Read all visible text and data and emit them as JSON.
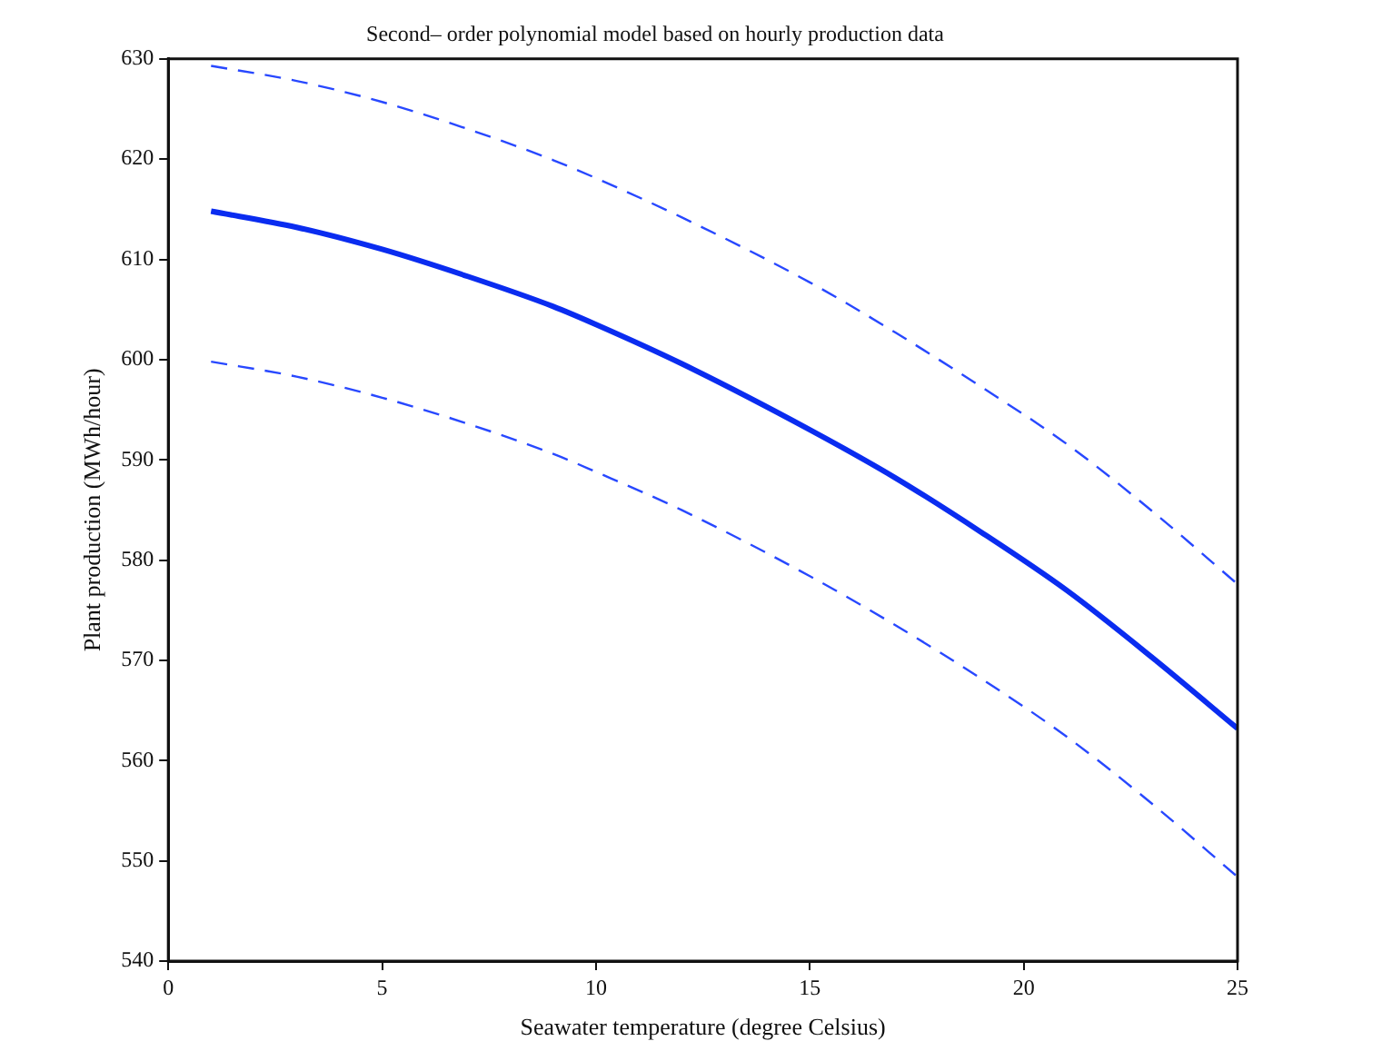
{
  "chart_data": {
    "type": "line",
    "title": "Second– order polynomial model based on hourly production data",
    "xlabel": "Seawater temperature (degree Celsius)",
    "ylabel": "Plant production (MWh/hour)",
    "x": [
      1,
      3,
      5,
      7,
      9,
      10,
      12,
      15,
      17,
      19,
      21,
      23,
      25
    ],
    "series": [
      {
        "color": "#2848ff",
        "line_style": "dashed",
        "values": [
          629.3,
          627.8,
          625.7,
          623.0,
          619.9,
          618.1,
          614.2,
          607.7,
          602.7,
          597.3,
          591.6,
          584.9,
          577.6
        ]
      },
      {
        "color": "#0a2cf0",
        "line_style": "solid",
        "values": [
          614.8,
          613.2,
          611.0,
          608.3,
          605.3,
          603.5,
          599.6,
          593.0,
          588.2,
          582.8,
          577.0,
          570.3,
          563.2
        ]
      },
      {
        "color": "#2848ff",
        "line_style": "dashed",
        "values": [
          599.8,
          598.3,
          596.2,
          593.6,
          590.6,
          588.8,
          585.0,
          578.4,
          573.5,
          568.2,
          562.4,
          555.7,
          548.4
        ]
      }
    ],
    "xlim": [
      0,
      25
    ],
    "xticks": [
      0,
      5,
      10,
      15,
      20,
      25
    ],
    "ylim": [
      540,
      630
    ],
    "yticks": [
      540,
      550,
      560,
      570,
      580,
      590,
      600,
      610,
      620,
      630
    ],
    "grid": false,
    "legend": false,
    "marker": "none"
  }
}
